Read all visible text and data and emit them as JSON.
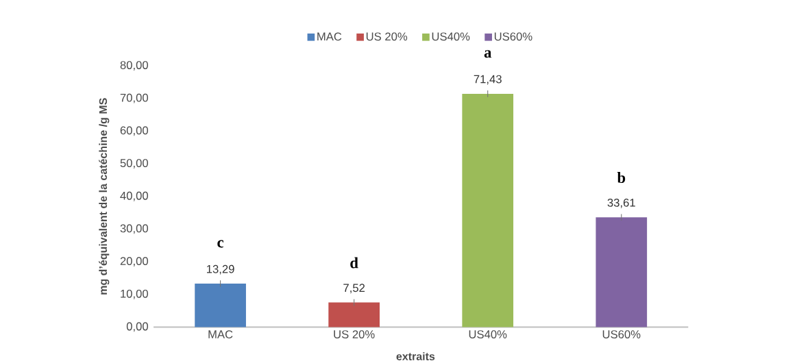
{
  "chart_data": {
    "type": "bar",
    "xlabel": "extraits",
    "ylabel": "mg d’équivalent de la catéchine /g MS",
    "categories": [
      "MAC",
      "US 20%",
      "US40%",
      "US60%"
    ],
    "series": [
      {
        "name": "MAC",
        "color": "#4f81bd",
        "values": [
          13.29,
          null,
          null,
          null
        ],
        "value_labels": [
          "13,29",
          null,
          null,
          null
        ],
        "errors": [
          1.0,
          null,
          null,
          null
        ]
      },
      {
        "name": "US 20%",
        "color": "#c0504d",
        "values": [
          null,
          7.52,
          null,
          null
        ],
        "value_labels": [
          null,
          "7,52",
          null,
          null
        ],
        "errors": [
          null,
          1.0,
          null,
          null
        ]
      },
      {
        "name": "US40%",
        "color": "#9bbb59",
        "values": [
          null,
          null,
          71.43,
          null
        ],
        "value_labels": [
          null,
          null,
          "71,43",
          null
        ],
        "errors": [
          null,
          null,
          1.0,
          null
        ]
      },
      {
        "name": "US60%",
        "color": "#8064a2",
        "values": [
          null,
          null,
          null,
          33.61
        ],
        "value_labels": [
          null,
          null,
          null,
          "33,61"
        ],
        "errors": [
          null,
          null,
          null,
          1.0
        ]
      }
    ],
    "ylim": [
      0,
      80
    ],
    "yticks": [
      {
        "value": 0,
        "label": "0,00"
      },
      {
        "value": 10,
        "label": "10,00"
      },
      {
        "value": 20,
        "label": "20,00"
      },
      {
        "value": 30,
        "label": "30,00"
      },
      {
        "value": 40,
        "label": "40,00"
      },
      {
        "value": 50,
        "label": "50,00"
      },
      {
        "value": 60,
        "label": "60,00"
      },
      {
        "value": 70,
        "label": "70,00"
      },
      {
        "value": 80,
        "label": "80,00"
      }
    ],
    "legend": "top",
    "annotations": [
      "c",
      "d",
      "a",
      "b"
    ]
  }
}
